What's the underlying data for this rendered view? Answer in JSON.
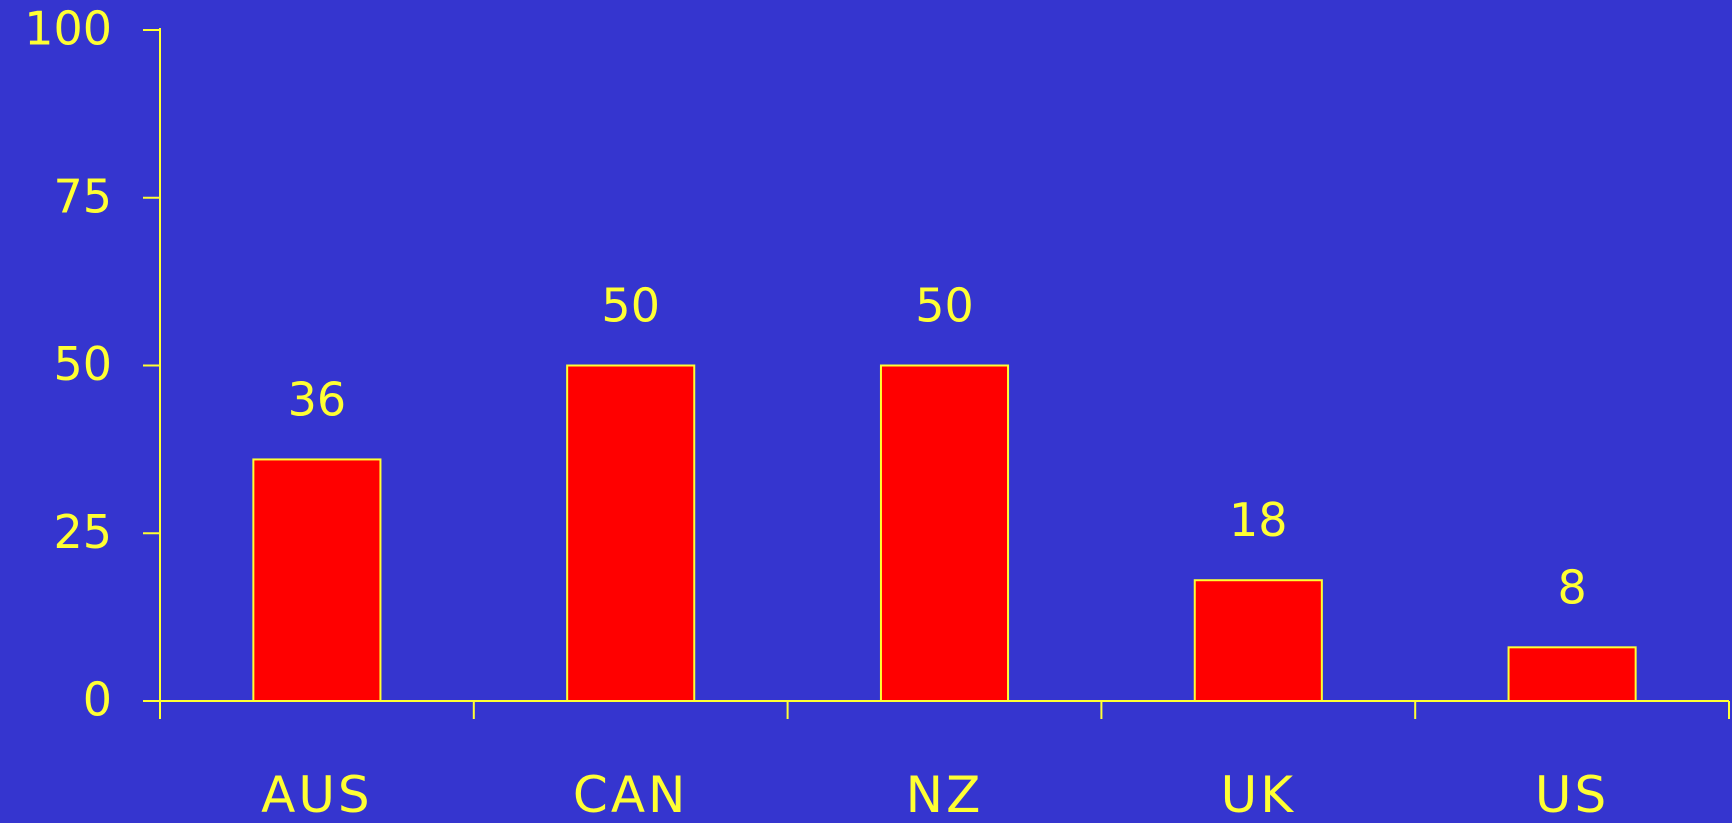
{
  "chart_data": {
    "type": "bar",
    "categories": [
      "AUS",
      "CAN",
      "NZ",
      "UK",
      "US"
    ],
    "values": [
      36,
      50,
      50,
      18,
      8
    ],
    "data_labels": [
      "36",
      "50",
      "50",
      "18",
      "8"
    ],
    "title": "",
    "xlabel": "",
    "ylabel": "",
    "ylim": [
      0,
      100
    ],
    "yticks": [
      0,
      25,
      50,
      75,
      100
    ],
    "grid": false,
    "legend": "none"
  },
  "colors": {
    "background": "#3535cf",
    "bar_fill": "#ff0000",
    "bar_stroke": "#ffff33",
    "axis": "#ffff33",
    "text": "#ffff33"
  }
}
